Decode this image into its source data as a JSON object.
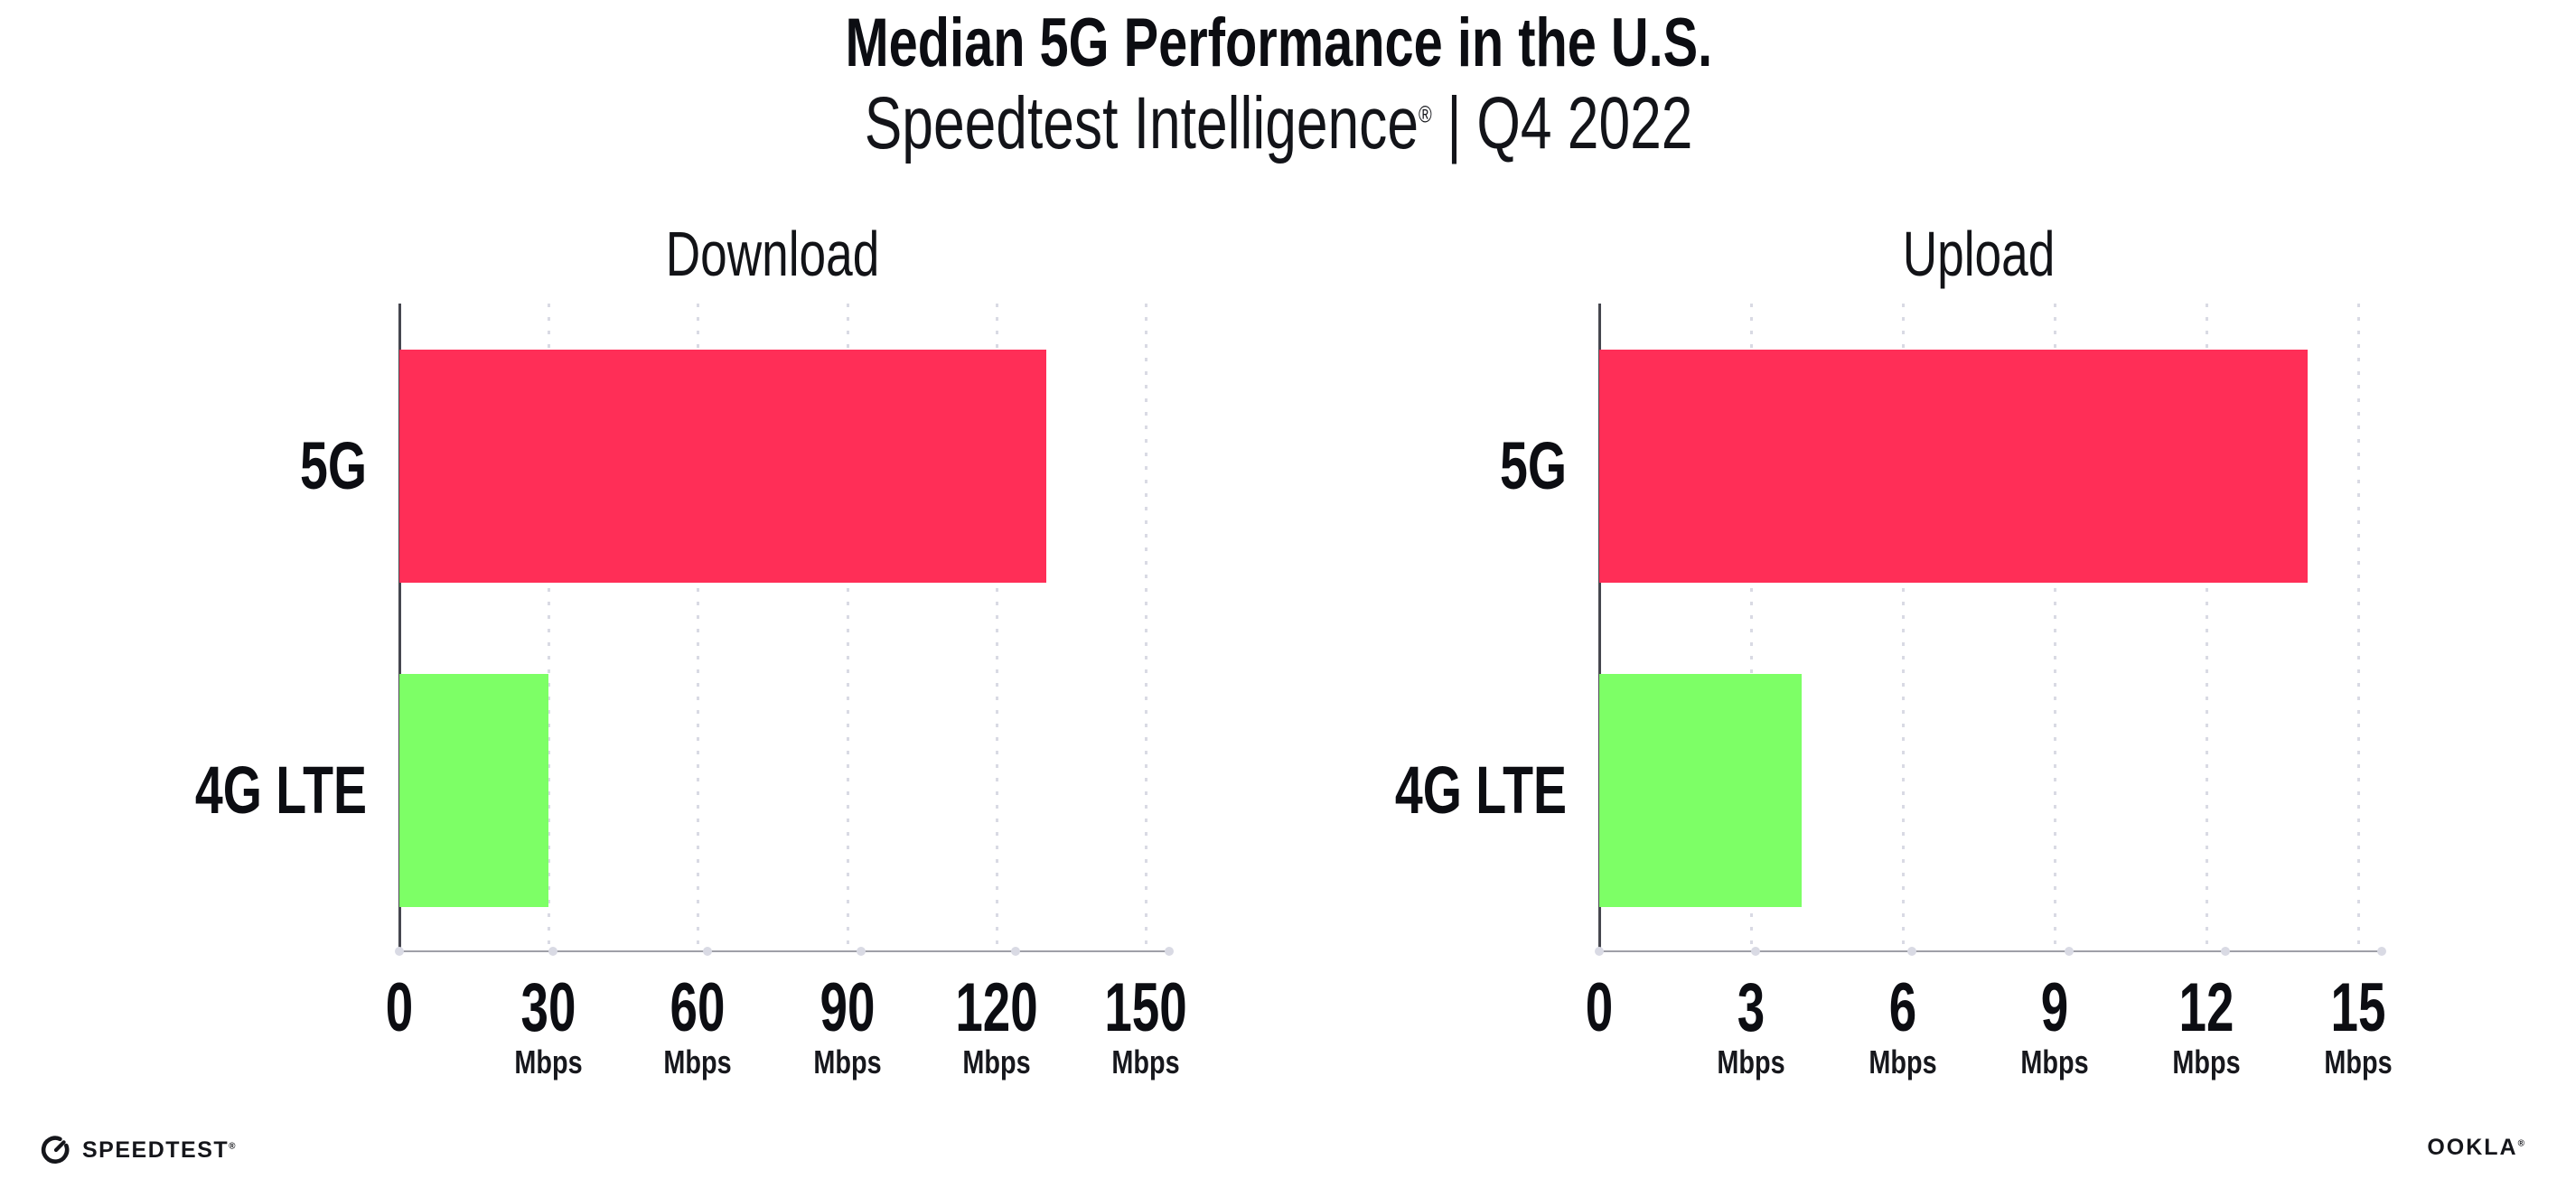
{
  "header": {
    "title": "Median 5G Performance in the U.S.",
    "subtitle_brand": "Speedtest Intelligence",
    "subtitle_reg": "®",
    "subtitle_sep": "|",
    "subtitle_period": "Q4 2022"
  },
  "chart_data": [
    {
      "type": "bar",
      "orientation": "horizontal",
      "title": "Download",
      "unit": "Mbps",
      "categories": [
        "5G",
        "4G LTE"
      ],
      "values": [
        130,
        30
      ],
      "bar_colors": [
        "#ff2e57",
        "#7dff66"
      ],
      "xlim": [
        0,
        150
      ],
      "xticks": [
        0,
        30,
        60,
        90,
        120,
        150
      ],
      "grid": "dotted-vertical-gridlines",
      "legend": "none"
    },
    {
      "type": "bar",
      "orientation": "horizontal",
      "title": "Upload",
      "unit": "Mbps",
      "categories": [
        "5G",
        "4G LTE"
      ],
      "values": [
        14,
        4
      ],
      "bar_colors": [
        "#ff2e57",
        "#7dff66"
      ],
      "xlim": [
        0,
        15
      ],
      "xticks": [
        0,
        3,
        6,
        9,
        12,
        15
      ],
      "grid": "dotted-vertical-gridlines",
      "legend": "none"
    }
  ],
  "footer": {
    "speedtest_label": "SPEEDTEST",
    "speedtest_reg": "®",
    "ookla_label": "OOKLA",
    "ookla_reg": "®"
  },
  "colors": {
    "bar_5g": "#ff2e57",
    "bar_4g_lte": "#7dff66",
    "background": "#ffffff",
    "gridline": "#d9dae4",
    "x_axis": "#9fa0a8",
    "y_axis": "#46474f",
    "text": "#0c0d12"
  }
}
